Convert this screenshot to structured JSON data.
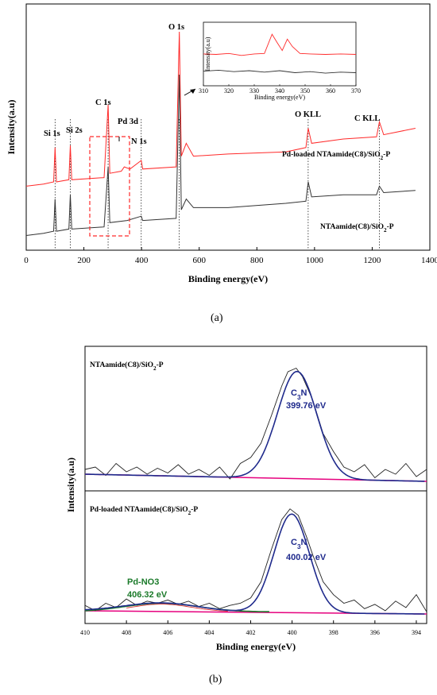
{
  "colors": {
    "red": "#ff2a2a",
    "black": "#333333",
    "fit_blue": "#1f2a8c",
    "baseline_pink": "#e6007e",
    "pd_green": "#1b7a2a"
  },
  "chart_data": [
    {
      "type": "line",
      "panel": "(a)",
      "xlabel": "Binding energy(eV)",
      "ylabel": "Intensity(a.u)",
      "xlim": [
        0,
        1400
      ],
      "x_ticks": [
        "0",
        "200",
        "400",
        "600",
        "800",
        "1000",
        "1200",
        "1400"
      ],
      "x_tick_values": [
        0,
        200,
        400,
        600,
        800,
        1000,
        1200,
        1400
      ],
      "series": [
        {
          "name": "Pd-loaded NTAamide(C8)/SiO₂-P",
          "color": "red",
          "points": [
            [
              0,
              0.28
            ],
            [
              60,
              0.29
            ],
            [
              95,
              0.3
            ],
            [
              100,
              0.46
            ],
            [
              105,
              0.3
            ],
            [
              148,
              0.31
            ],
            [
              153,
              0.47
            ],
            [
              158,
              0.31
            ],
            [
              270,
              0.32
            ],
            [
              284,
              0.66
            ],
            [
              290,
              0.34
            ],
            [
              330,
              0.35
            ],
            [
              340,
              0.37
            ],
            [
              360,
              0.36
            ],
            [
              399,
              0.4
            ],
            [
              404,
              0.36
            ],
            [
              520,
              0.37
            ],
            [
              531,
              1.0
            ],
            [
              538,
              0.42
            ],
            [
              555,
              0.48
            ],
            [
              580,
              0.42
            ],
            [
              700,
              0.43
            ],
            [
              900,
              0.44
            ],
            [
              970,
              0.46
            ],
            [
              978,
              0.55
            ],
            [
              990,
              0.48
            ],
            [
              1100,
              0.5
            ],
            [
              1215,
              0.51
            ],
            [
              1225,
              0.58
            ],
            [
              1240,
              0.52
            ],
            [
              1350,
              0.55
            ]
          ]
        },
        {
          "name": "NTAamide(C8)/SiO₂-P",
          "color": "black",
          "points": [
            [
              0,
              0.05
            ],
            [
              60,
              0.06
            ],
            [
              95,
              0.07
            ],
            [
              100,
              0.22
            ],
            [
              105,
              0.07
            ],
            [
              148,
              0.08
            ],
            [
              153,
              0.24
            ],
            [
              158,
              0.08
            ],
            [
              270,
              0.09
            ],
            [
              284,
              0.37
            ],
            [
              290,
              0.11
            ],
            [
              350,
              0.12
            ],
            [
              399,
              0.14
            ],
            [
              404,
              0.12
            ],
            [
              520,
              0.13
            ],
            [
              531,
              0.8
            ],
            [
              538,
              0.17
            ],
            [
              555,
              0.22
            ],
            [
              580,
              0.18
            ],
            [
              700,
              0.18
            ],
            [
              900,
              0.2
            ],
            [
              970,
              0.21
            ],
            [
              978,
              0.3
            ],
            [
              990,
              0.23
            ],
            [
              1100,
              0.24
            ],
            [
              1215,
              0.24
            ],
            [
              1225,
              0.28
            ],
            [
              1240,
              0.25
            ],
            [
              1350,
              0.26
            ]
          ]
        }
      ],
      "peak_labels": [
        {
          "text": "Si 1s",
          "x": 100
        },
        {
          "text": "Si 2s",
          "x": 153
        },
        {
          "text": "C 1s",
          "x": 284
        },
        {
          "text": "Pd 3d",
          "x": 335
        },
        {
          "text": "N 1s",
          "x": 399
        },
        {
          "text": "O 1s",
          "x": 531
        },
        {
          "text": "O KLL",
          "x": 978
        },
        {
          "text": "C KLL",
          "x": 1225
        }
      ],
      "inset": {
        "xlabel": "Binding energy(eV)",
        "ylabel": "Intensity(a.u)",
        "xlim": [
          310,
          370
        ],
        "x_ticks": [
          "310",
          "320",
          "330",
          "340",
          "350",
          "360",
          "370"
        ],
        "x_tick_values": [
          310,
          320,
          330,
          340,
          350,
          360,
          370
        ],
        "series": [
          {
            "color": "red",
            "points": [
              [
                310,
                0.55
              ],
              [
                315,
                0.54
              ],
              [
                320,
                0.56
              ],
              [
                325,
                0.52
              ],
              [
                330,
                0.55
              ],
              [
                334,
                0.56
              ],
              [
                337,
                0.95
              ],
              [
                339,
                0.78
              ],
              [
                341,
                0.62
              ],
              [
                343,
                0.85
              ],
              [
                345,
                0.7
              ],
              [
                348,
                0.56
              ],
              [
                352,
                0.55
              ],
              [
                358,
                0.54
              ],
              [
                364,
                0.55
              ],
              [
                370,
                0.54
              ]
            ]
          },
          {
            "color": "black",
            "points": [
              [
                310,
                0.2
              ],
              [
                316,
                0.22
              ],
              [
                322,
                0.19
              ],
              [
                328,
                0.21
              ],
              [
                334,
                0.18
              ],
              [
                340,
                0.21
              ],
              [
                346,
                0.17
              ],
              [
                352,
                0.19
              ],
              [
                358,
                0.16
              ],
              [
                364,
                0.18
              ],
              [
                370,
                0.17
              ]
            ]
          }
        ]
      }
    },
    {
      "type": "line",
      "panel": "(b)",
      "xlabel": "Binding energy(eV)",
      "ylabel": "Intensity(a.u)",
      "xlim": [
        410,
        393.5
      ],
      "x_ticks": [
        "410",
        "408",
        "406",
        "404",
        "402",
        "400",
        "398",
        "396",
        "394"
      ],
      "x_tick_values": [
        410,
        408,
        406,
        404,
        402,
        400,
        398,
        396,
        394
      ],
      "subplots": [
        {
          "sample": "NTAamide(C8)/SiO₂-P",
          "component": "C₃N",
          "component_energy": "399.76 eV",
          "raw": [
            [
              410,
              0.1
            ],
            [
              409.5,
              0.12
            ],
            [
              409,
              0.05
            ],
            [
              408.5,
              0.15
            ],
            [
              408,
              0.08
            ],
            [
              407.5,
              0.12
            ],
            [
              407,
              0.06
            ],
            [
              406.5,
              0.11
            ],
            [
              406,
              0.07
            ],
            [
              405.5,
              0.14
            ],
            [
              405,
              0.06
            ],
            [
              404.5,
              0.1
            ],
            [
              404,
              0.05
            ],
            [
              403.5,
              0.12
            ],
            [
              403,
              0.02
            ],
            [
              402.5,
              0.15
            ],
            [
              402,
              0.2
            ],
            [
              401.5,
              0.32
            ],
            [
              401,
              0.55
            ],
            [
              400.5,
              0.8
            ],
            [
              400.2,
              0.92
            ],
            [
              399.8,
              0.95
            ],
            [
              399.5,
              0.88
            ],
            [
              399,
              0.68
            ],
            [
              398.5,
              0.4
            ],
            [
              398,
              0.25
            ],
            [
              397.5,
              0.12
            ],
            [
              397,
              0.08
            ],
            [
              396.5,
              0.14
            ],
            [
              396,
              0.03
            ],
            [
              395.5,
              0.1
            ],
            [
              395,
              0.06
            ],
            [
              394.5,
              0.15
            ],
            [
              394,
              0.04
            ],
            [
              393.5,
              0.1
            ]
          ],
          "fit_center": 399.76,
          "fit_height": 0.9,
          "fit_width": 0.95,
          "baseline": [
            0.06,
            0.0
          ]
        },
        {
          "sample": "Pd-loaded NTAamide(C8)/SiO₂-P",
          "component": "C₃N",
          "component_energy": "400.02 eV",
          "pd_component": "Pd-NO3",
          "pd_energy": "406.32 eV",
          "raw": [
            [
              410,
              0.08
            ],
            [
              409.5,
              0.03
            ],
            [
              409,
              0.1
            ],
            [
              408.5,
              0.06
            ],
            [
              408,
              0.14
            ],
            [
              407.5,
              0.08
            ],
            [
              407,
              0.12
            ],
            [
              406.5,
              0.1
            ],
            [
              406,
              0.13
            ],
            [
              405.5,
              0.09
            ],
            [
              405,
              0.12
            ],
            [
              404.5,
              0.07
            ],
            [
              404,
              0.1
            ],
            [
              403.5,
              0.05
            ],
            [
              403,
              0.08
            ],
            [
              402.5,
              0.1
            ],
            [
              402,
              0.15
            ],
            [
              401.5,
              0.3
            ],
            [
              401,
              0.6
            ],
            [
              400.5,
              0.88
            ],
            [
              400.1,
              0.98
            ],
            [
              399.7,
              0.92
            ],
            [
              399.3,
              0.72
            ],
            [
              399,
              0.55
            ],
            [
              398.5,
              0.3
            ],
            [
              398,
              0.18
            ],
            [
              397.5,
              0.1
            ],
            [
              397,
              0.13
            ],
            [
              396.5,
              0.05
            ],
            [
              396,
              0.09
            ],
            [
              395.5,
              0.03
            ],
            [
              395,
              0.12
            ],
            [
              394.5,
              0.06
            ],
            [
              394,
              0.18
            ],
            [
              393.5,
              0.02
            ]
          ],
          "fit_center": 400.02,
          "fit_height": 0.92,
          "fit_width": 0.85,
          "pd_center": 406.32,
          "pd_height": 0.08,
          "pd_width": 1.8,
          "baseline": [
            0.03,
            0.0
          ]
        }
      ]
    }
  ]
}
